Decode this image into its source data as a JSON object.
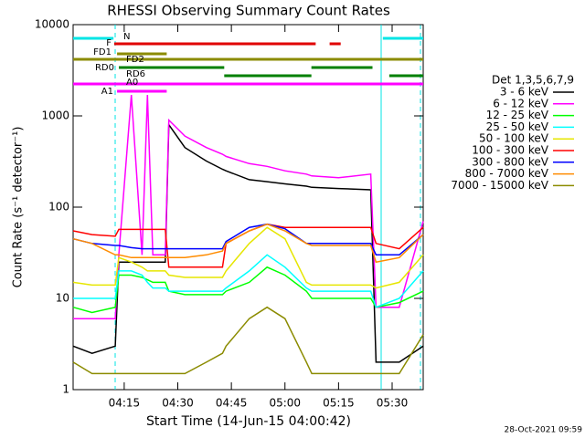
{
  "chart_data": {
    "type": "line",
    "title": "RHESSI Observing Summary Count Rates",
    "x_label": "Start Time (14-Jun-15 04:00:42)",
    "y_label": "Count Rate (s⁻¹ detector⁻¹)",
    "footer": "28-Oct-2021 09:59",
    "legend_title": "Det 1,3,5,6,7,9",
    "log_y": true,
    "xlim": [
      0.7,
      98.7
    ],
    "xticks": [
      {
        "value": 15,
        "label": "04:15"
      },
      {
        "value": 30,
        "label": "04:30"
      },
      {
        "value": 45,
        "label": "04:45"
      },
      {
        "value": 60,
        "label": "05:00"
      },
      {
        "value": 75,
        "label": "05:15"
      },
      {
        "value": 90,
        "label": "05:30"
      }
    ],
    "ylim": [
      1,
      10000
    ],
    "yticks": [
      1,
      10,
      100,
      1000,
      10000
    ],
    "x": [
      0.7,
      6,
      12.5,
      13.5,
      17,
      20,
      21.5,
      23,
      26.5,
      27.5,
      32,
      38,
      42.5,
      43.5,
      50,
      55,
      60,
      66,
      67.5,
      75,
      84,
      85.5,
      92,
      98.7
    ],
    "series": [
      {
        "name": "3 - 6 keV",
        "color": "#000000",
        "values": [
          3,
          2.5,
          3,
          25,
          25,
          25,
          25,
          25,
          25,
          800,
          450,
          320,
          260,
          250,
          200,
          190,
          180,
          170,
          165,
          160,
          155,
          2,
          2,
          3
        ]
      },
      {
        "name": "6 - 12 keV",
        "color": "#ff00ff",
        "values": [
          6,
          6,
          6,
          30,
          1700,
          30,
          1700,
          30,
          30,
          900,
          600,
          450,
          380,
          360,
          300,
          280,
          250,
          230,
          220,
          210,
          230,
          8,
          8,
          70
        ]
      },
      {
        "name": "12 - 25 keV",
        "color": "#00ff00",
        "values": [
          8,
          7,
          8,
          18,
          18,
          17,
          16,
          15,
          15,
          12,
          11,
          11,
          11,
          12,
          15,
          22,
          18,
          12,
          10,
          10,
          10,
          8,
          9,
          12
        ]
      },
      {
        "name": "25 - 50 keV",
        "color": "#00ffff",
        "values": [
          10,
          10,
          10,
          20,
          20,
          18,
          15,
          13,
          13,
          12,
          12,
          12,
          12,
          13,
          20,
          30,
          22,
          13,
          12,
          12,
          12,
          8,
          10,
          20
        ]
      },
      {
        "name": "50 - 100 keV",
        "color": "#e6e600",
        "values": [
          15,
          14,
          14,
          28,
          25,
          22,
          20,
          20,
          20,
          18,
          17,
          17,
          17,
          20,
          40,
          60,
          45,
          15,
          14,
          14,
          14,
          13,
          15,
          30
        ]
      },
      {
        "name": "100 - 300 keV",
        "color": "#ff0000",
        "values": [
          55,
          50,
          48,
          57,
          57,
          57,
          57,
          57,
          57,
          22,
          22,
          22,
          22,
          40,
          55,
          65,
          60,
          60,
          60,
          60,
          60,
          40,
          35,
          60
        ]
      },
      {
        "name": "300 - 800 keV",
        "color": "#0000ff",
        "values": [
          45,
          40,
          38,
          38,
          36,
          35,
          35,
          35,
          35,
          35,
          35,
          35,
          35,
          42,
          60,
          65,
          58,
          40,
          40,
          40,
          40,
          30,
          30,
          50
        ]
      },
      {
        "name": "800 - 7000 keV",
        "color": "#ff8c00",
        "values": [
          45,
          40,
          30,
          30,
          28,
          28,
          28,
          28,
          28,
          28,
          28,
          30,
          33,
          40,
          55,
          65,
          55,
          40,
          38,
          38,
          38,
          25,
          28,
          50
        ]
      },
      {
        "name": "7000 - 15000 keV",
        "color": "#8b8b00",
        "values": [
          2,
          1.5,
          1.5,
          1.5,
          1.5,
          1.5,
          1.5,
          1.5,
          1.5,
          1.5,
          1.5,
          2,
          2.5,
          3,
          6,
          8,
          6,
          2,
          1.5,
          1.5,
          1.5,
          1.5,
          1.5,
          4
        ]
      }
    ],
    "flags": [
      {
        "label": "N",
        "color": "#00e5e5",
        "segments": [
          [
            0.7,
            12
          ],
          [
            87.4,
            98.7
          ]
        ]
      },
      {
        "label": "F",
        "color": "#e00000",
        "segments": [
          [
            12.2,
            68.6
          ],
          [
            72.5,
            75.6
          ]
        ]
      },
      {
        "label": "FD1",
        "color": "#8b8b00",
        "segments": [
          [
            13,
            26.9
          ]
        ]
      },
      {
        "label": "FD2",
        "color": "#8b8b00",
        "segments": [
          [
            0.7,
            98.7
          ]
        ]
      },
      {
        "label": "RD0",
        "color": "#008000",
        "segments": [
          [
            13.5,
            43
          ],
          [
            67.4,
            84.5
          ]
        ]
      },
      {
        "label": "RD6",
        "color": "#008000",
        "segments": [
          [
            43,
            67.4
          ],
          [
            89.2,
            98.7
          ]
        ]
      },
      {
        "label": "A0",
        "color": "#ff00ff",
        "segments": [
          [
            0.7,
            98.7
          ]
        ]
      },
      {
        "label": "A1",
        "color": "#ff00ff",
        "segments": [
          [
            13,
            26.9
          ]
        ]
      }
    ]
  }
}
